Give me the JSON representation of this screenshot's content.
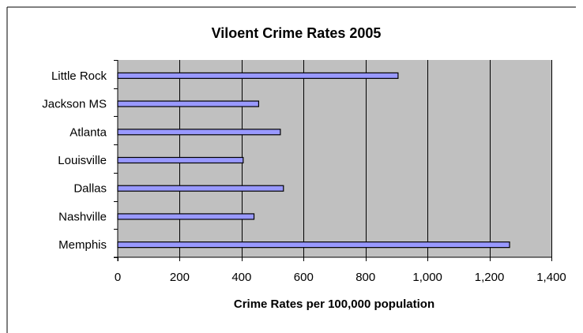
{
  "chart_data": {
    "type": "bar",
    "orientation": "horizontal",
    "title": "Viloent Crime Rates 2005",
    "xlabel": "Crime Rates per 100,000 population",
    "ylabel": "",
    "categories": [
      "Little Rock",
      "Jackson MS",
      "Atlanta",
      "Louisville",
      "Dallas",
      "Nashville",
      "Memphis"
    ],
    "values": [
      905,
      455,
      525,
      405,
      535,
      440,
      1265
    ],
    "xlim": [
      0,
      1400
    ],
    "xticks": [
      0,
      200,
      400,
      600,
      800,
      1000,
      1200,
      1400
    ],
    "xtick_labels": [
      "0",
      "200",
      "400",
      "600",
      "800",
      "1,000",
      "1,200",
      "1,400"
    ],
    "grid": "vertical",
    "legend": "none"
  },
  "colors": {
    "bar_fill": "#9999ff",
    "bar_stroke": "#000000",
    "plot_background": "#c0c0c0",
    "gridline": "#000000",
    "frame": "#000000"
  }
}
